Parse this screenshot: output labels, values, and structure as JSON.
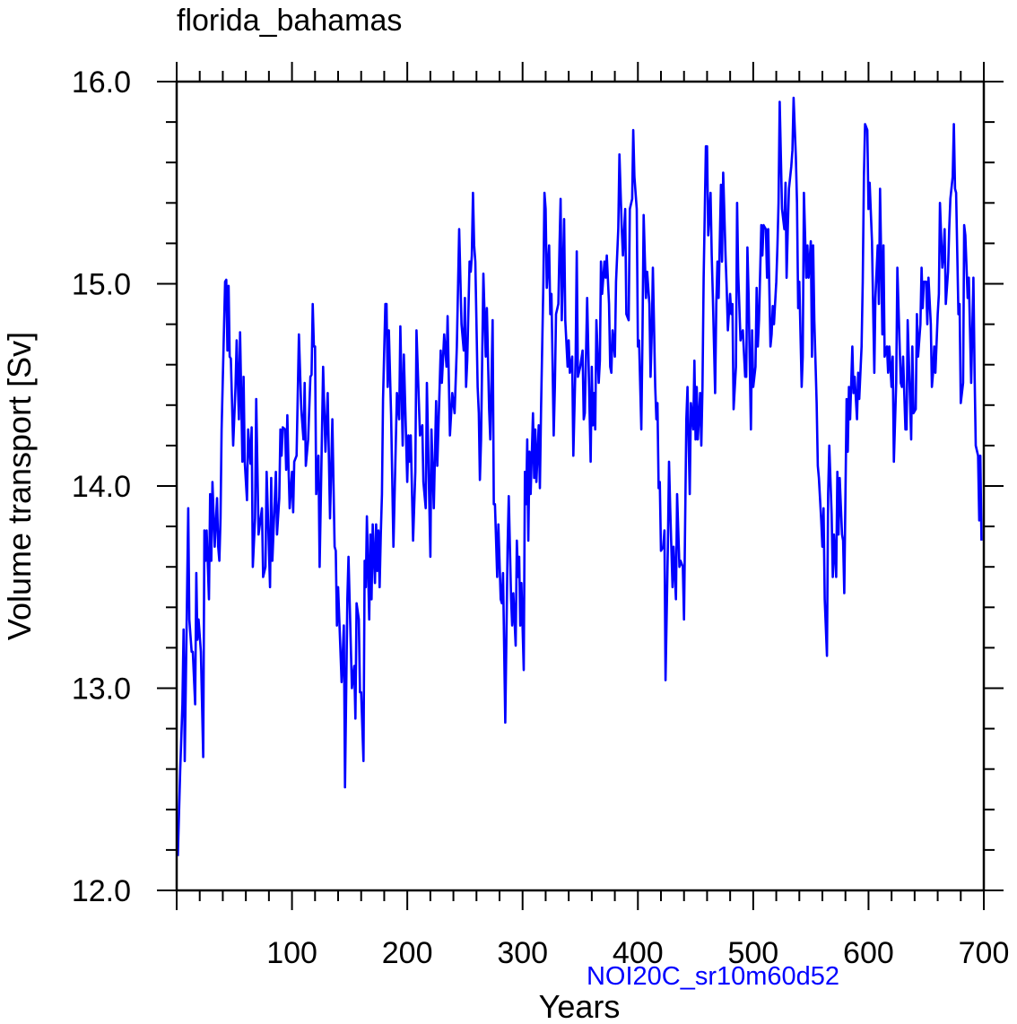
{
  "chart_data": {
    "type": "line",
    "title": "florida_bahamas",
    "subtitle": "NOI20C_sr10m60d52",
    "xlabel": "Years",
    "ylabel": "Volume transport [Sv]",
    "xlim": [
      0,
      700
    ],
    "ylim": [
      12.0,
      16.0
    ],
    "xticks": [
      100,
      200,
      300,
      400,
      500,
      600,
      700
    ],
    "xtick_labels": [
      "100",
      "200",
      "300",
      "400",
      "500",
      "600",
      "700"
    ],
    "yticks": [
      12.0,
      13.0,
      14.0,
      15.0,
      16.0
    ],
    "ytick_labels": [
      "12.0",
      "13.0",
      "14.0",
      "15.0",
      "16.0"
    ],
    "x_minor_step": 20,
    "y_minor_step": 0.2,
    "grid": false,
    "colors": {
      "line": "#0000ff",
      "subtitle": "#0000ff",
      "axes": "#000000"
    },
    "series": [
      {
        "name": "florida_bahamas",
        "x": [
          1,
          3,
          5,
          6,
          7,
          10,
          11,
          13,
          14,
          16,
          17,
          18,
          19,
          21,
          23,
          24,
          25,
          26,
          28,
          29,
          30,
          31,
          33,
          35,
          36,
          37,
          38,
          39,
          42,
          43,
          44,
          45,
          46,
          47,
          49,
          51,
          52,
          54,
          55,
          57,
          58,
          59,
          61,
          62,
          64,
          65,
          66,
          68,
          69,
          71,
          74,
          75,
          77,
          78,
          81,
          82,
          83,
          86,
          87,
          89,
          90,
          91,
          92,
          94,
          95,
          96,
          97,
          98,
          100,
          101,
          102,
          104,
          106,
          108,
          110,
          111,
          112,
          114,
          116,
          117,
          118,
          119,
          120,
          121,
          123,
          124,
          127,
          129,
          131,
          133,
          135,
          137,
          138,
          139,
          140,
          143,
          145,
          146,
          148,
          149,
          152,
          154,
          155,
          156,
          158,
          159,
          160,
          162,
          163,
          164,
          165,
          167,
          168,
          169,
          170,
          172,
          173,
          174,
          175,
          176,
          177,
          178,
          179,
          181,
          182,
          183,
          184,
          186,
          188,
          191,
          193,
          194,
          196,
          197,
          200,
          201,
          202,
          203,
          205,
          207,
          208,
          211,
          213,
          214,
          216,
          217,
          220,
          221,
          223,
          225,
          226,
          229,
          230,
          232,
          234,
          235,
          237,
          239,
          241,
          243,
          245,
          247,
          249,
          250,
          251,
          252,
          254,
          255,
          256,
          257,
          258,
          259,
          261,
          262,
          263,
          264,
          266,
          268,
          269,
          271,
          272,
          274,
          275,
          276,
          278,
          279,
          281,
          282,
          283,
          285,
          287,
          288,
          290,
          291,
          292,
          294,
          295,
          296,
          297,
          298,
          299,
          301,
          302,
          303,
          304,
          305,
          306,
          307,
          309,
          310,
          311,
          312,
          314,
          315,
          316,
          318,
          319,
          320,
          321,
          323,
          324,
          325,
          327,
          328,
          329,
          331,
          332,
          333,
          334,
          336,
          337,
          339,
          340,
          341,
          343,
          344,
          346,
          347,
          348,
          350,
          352,
          353,
          354,
          356,
          357,
          359,
          360,
          361,
          362,
          363,
          364,
          366,
          367,
          368,
          369,
          371,
          372,
          373,
          375,
          376,
          377,
          378,
          380,
          381,
          383,
          384,
          386,
          387,
          389,
          390,
          392,
          393,
          395,
          396,
          397,
          399,
          400,
          401,
          403,
          404,
          405,
          407,
          408,
          410,
          411,
          412,
          413,
          415,
          416,
          417,
          418,
          419,
          420,
          422,
          423,
          424,
          426,
          427,
          428,
          430,
          431,
          433,
          434,
          435,
          436,
          437,
          439,
          440,
          442,
          443,
          445,
          446,
          448,
          449,
          450,
          451,
          452,
          454,
          455,
          456,
          457,
          459,
          460,
          461,
          463,
          464,
          465,
          467,
          468,
          469,
          470,
          472,
          473,
          474,
          476,
          477,
          478,
          480,
          481,
          482,
          483,
          485,
          486,
          487,
          489,
          490,
          491,
          493,
          494,
          495,
          496,
          498,
          499,
          500,
          502,
          503,
          504,
          505,
          507,
          508,
          509,
          511,
          512,
          513,
          515,
          516,
          517,
          518,
          520,
          521,
          522,
          523,
          524,
          525,
          527,
          528,
          529,
          530,
          531,
          533,
          534,
          535,
          537,
          538,
          539,
          540,
          542,
          543,
          544,
          546,
          547,
          548,
          550,
          551,
          552,
          553,
          555,
          556,
          557,
          559,
          560,
          561,
          562,
          564,
          565,
          566,
          568,
          569,
          570,
          572,
          573,
          574,
          575,
          577,
          578,
          579,
          581,
          582,
          583,
          584,
          586,
          587,
          588,
          590,
          591,
          592,
          594,
          595,
          596,
          597,
          599,
          600,
          601,
          603,
          604,
          605,
          606,
          608,
          609,
          610,
          612,
          613,
          614,
          616,
          617,
          618,
          620,
          621,
          622,
          624,
          625,
          626,
          628,
          629,
          630,
          632,
          633,
          634,
          636,
          637,
          638,
          639,
          641,
          642,
          643,
          645,
          646,
          647,
          648,
          650,
          651,
          652,
          654,
          655,
          656,
          657,
          658,
          660,
          661,
          662,
          664,
          665,
          666,
          667,
          669,
          670,
          671,
          673,
          674,
          675,
          676,
          678,
          679,
          680,
          682,
          683,
          684,
          686,
          687,
          688,
          689,
          691,
          692,
          693,
          695,
          696,
          697,
          698
        ],
        "y": [
          12.17,
          12.59,
          12.92,
          13.29,
          12.64,
          13.89,
          13.34,
          13.18,
          13.18,
          12.92,
          13.57,
          13.24,
          13.34,
          13.18,
          12.66,
          13.78,
          13.63,
          13.78,
          13.44,
          13.96,
          13.63,
          14.02,
          13.7,
          13.94,
          13.7,
          13.63,
          13.84,
          14.28,
          15.01,
          15.02,
          14.67,
          14.99,
          14.64,
          14.63,
          14.2,
          14.49,
          14.72,
          14.33,
          14.76,
          14.12,
          14.54,
          14.12,
          13.93,
          14.28,
          14.11,
          14.29,
          13.6,
          13.84,
          14.43,
          13.76,
          13.89,
          13.55,
          13.6,
          14.07,
          13.5,
          14.04,
          13.63,
          14.07,
          13.76,
          13.94,
          14.28,
          14.15,
          14.29,
          14.28,
          14.08,
          14.35,
          14.1,
          13.89,
          14.07,
          13.87,
          14.12,
          14.15,
          14.75,
          14.38,
          14.23,
          14.51,
          14.1,
          14.23,
          14.54,
          14.55,
          14.9,
          14.69,
          14.69,
          13.96,
          14.15,
          13.6,
          14.59,
          14.17,
          14.46,
          13.84,
          14.33,
          13.7,
          13.68,
          13.31,
          13.5,
          13.03,
          13.31,
          12.51,
          13.44,
          13.65,
          13.0,
          13.11,
          12.85,
          13.42,
          13.34,
          12.98,
          12.98,
          12.64,
          13.63,
          13.5,
          13.85,
          13.34,
          13.76,
          13.44,
          13.81,
          13.52,
          13.81,
          13.58,
          13.78,
          13.5,
          13.76,
          13.96,
          14.43,
          14.9,
          14.9,
          14.49,
          14.77,
          14.35,
          13.7,
          14.46,
          14.33,
          14.79,
          14.2,
          14.65,
          14.02,
          14.25,
          14.12,
          14.25,
          13.73,
          14.07,
          14.77,
          14.25,
          14.3,
          14.02,
          13.89,
          14.51,
          13.65,
          14.28,
          13.89,
          14.42,
          14.1,
          14.67,
          14.51,
          14.75,
          14.59,
          14.84,
          14.25,
          14.46,
          14.36,
          14.69,
          15.27,
          14.8,
          14.67,
          14.93,
          14.49,
          14.62,
          15.11,
          15.06,
          15.14,
          15.45,
          15.19,
          15.11,
          14.49,
          14.36,
          14.03,
          14.23,
          15.05,
          14.64,
          14.88,
          14.38,
          14.23,
          14.82,
          13.91,
          13.91,
          13.55,
          13.81,
          13.44,
          13.42,
          13.57,
          12.83,
          13.7,
          13.95,
          13.44,
          13.31,
          13.47,
          13.21,
          13.73,
          13.55,
          13.65,
          13.31,
          13.52,
          13.09,
          14.07,
          13.91,
          14.23,
          13.73,
          14.17,
          13.96,
          14.36,
          14.04,
          14.28,
          14.02,
          14.3,
          13.99,
          14.38,
          15.01,
          15.45,
          15.37,
          14.98,
          15.19,
          14.85,
          14.95,
          14.25,
          14.49,
          14.85,
          14.9,
          15.19,
          15.42,
          14.82,
          15.32,
          14.82,
          14.59,
          14.72,
          14.56,
          14.64,
          14.15,
          14.64,
          15.16,
          14.54,
          14.59,
          14.67,
          14.33,
          14.36,
          14.93,
          14.67,
          14.12,
          14.59,
          14.3,
          14.46,
          14.28,
          14.82,
          14.51,
          14.62,
          15.11,
          14.95,
          15.11,
          15.03,
          15.14,
          14.9,
          14.59,
          14.56,
          14.77,
          14.64,
          15.01,
          15.27,
          15.64,
          15.27,
          15.14,
          15.37,
          14.85,
          14.82,
          15.37,
          15.42,
          15.76,
          15.53,
          15.37,
          14.69,
          14.72,
          14.28,
          14.75,
          15.34,
          14.93,
          15.06,
          14.9,
          14.54,
          14.75,
          15.08,
          14.49,
          14.33,
          14.41,
          13.99,
          14.02,
          13.68,
          13.7,
          13.78,
          13.04,
          13.7,
          14.12,
          13.89,
          13.5,
          13.7,
          13.44,
          13.96,
          13.78,
          13.6,
          13.63,
          13.6,
          13.34,
          14.33,
          14.49,
          13.96,
          14.41,
          14.28,
          14.62,
          14.23,
          14.49,
          14.23,
          14.46,
          14.2,
          14.49,
          15.03,
          15.68,
          15.68,
          15.24,
          15.45,
          15.14,
          14.93,
          14.46,
          14.9,
          15.11,
          14.93,
          15.49,
          15.11,
          15.55,
          15.14,
          14.98,
          14.77,
          14.95,
          14.85,
          14.9,
          14.38,
          14.59,
          15.4,
          15.06,
          14.72,
          14.75,
          14.77,
          14.54,
          14.54,
          15.18,
          14.95,
          14.28,
          14.77,
          14.49,
          14.59,
          14.98,
          14.69,
          14.82,
          15.29,
          15.14,
          15.29,
          15.27,
          15.03,
          15.27,
          14.69,
          14.75,
          14.89,
          14.8,
          15.01,
          15.19,
          15.4,
          15.9,
          15.63,
          15.37,
          15.27,
          15.5,
          15.03,
          15.27,
          15.47,
          15.58,
          15.66,
          15.92,
          15.63,
          15.4,
          14.88,
          15.01,
          14.49,
          14.64,
          15.45,
          15.03,
          15.19,
          15.03,
          15.21,
          14.64,
          15.19,
          14.82,
          14.41,
          14.1,
          14.04,
          13.83,
          13.7,
          13.89,
          13.44,
          13.16,
          13.96,
          14.2,
          13.86,
          13.55,
          13.76,
          13.55,
          14.07,
          13.76,
          14.04,
          13.76,
          13.73,
          13.47,
          14.43,
          14.17,
          14.49,
          14.33,
          14.69,
          14.46,
          14.54,
          14.33,
          14.56,
          14.43,
          14.69,
          15.01,
          15.53,
          15.79,
          15.76,
          15.37,
          15.5,
          15.21,
          14.88,
          14.56,
          14.93,
          15.19,
          14.9,
          15.47,
          14.75,
          15.19,
          14.64,
          14.69,
          14.56,
          14.69,
          14.49,
          14.64,
          14.12,
          14.51,
          15.08,
          14.88,
          14.51,
          14.49,
          14.64,
          14.28,
          14.28,
          14.82,
          14.43,
          14.23,
          14.69,
          14.36,
          14.38,
          14.85,
          14.64,
          14.8,
          15.08,
          14.88,
          15.01,
          15.01,
          14.8,
          15.03,
          14.8,
          14.49,
          14.56,
          14.69,
          14.56,
          14.85,
          14.95,
          15.4,
          15.08,
          15.14,
          15.27,
          14.9,
          15.06,
          15.27,
          15.42,
          15.53,
          15.79,
          15.47,
          15.45,
          14.85,
          14.9,
          14.41,
          14.51,
          15.29,
          15.24,
          14.93,
          15.03,
          14.77,
          14.51,
          15.03,
          14.56,
          14.2,
          14.15,
          13.83,
          14.15,
          13.73
        ]
      }
    ]
  }
}
